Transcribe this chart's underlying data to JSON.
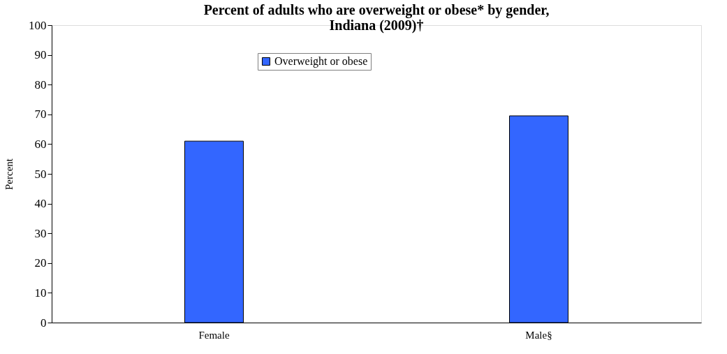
{
  "chart_data": {
    "type": "bar",
    "title": [
      "Percent of adults who are overweight or obese* by gender,",
      "Indiana (2009)†"
    ],
    "ylabel": "Percent",
    "categories": [
      "Female",
      "Male§"
    ],
    "series": [
      {
        "name": "Overweight or obese",
        "color": "#3366ff",
        "values": [
          61.0,
          69.5
        ]
      }
    ],
    "ylim": [
      0,
      100
    ],
    "yticks": [
      0,
      10,
      20,
      30,
      40,
      50,
      60,
      70,
      80,
      90,
      100
    ],
    "grid": false,
    "legend": "top"
  }
}
